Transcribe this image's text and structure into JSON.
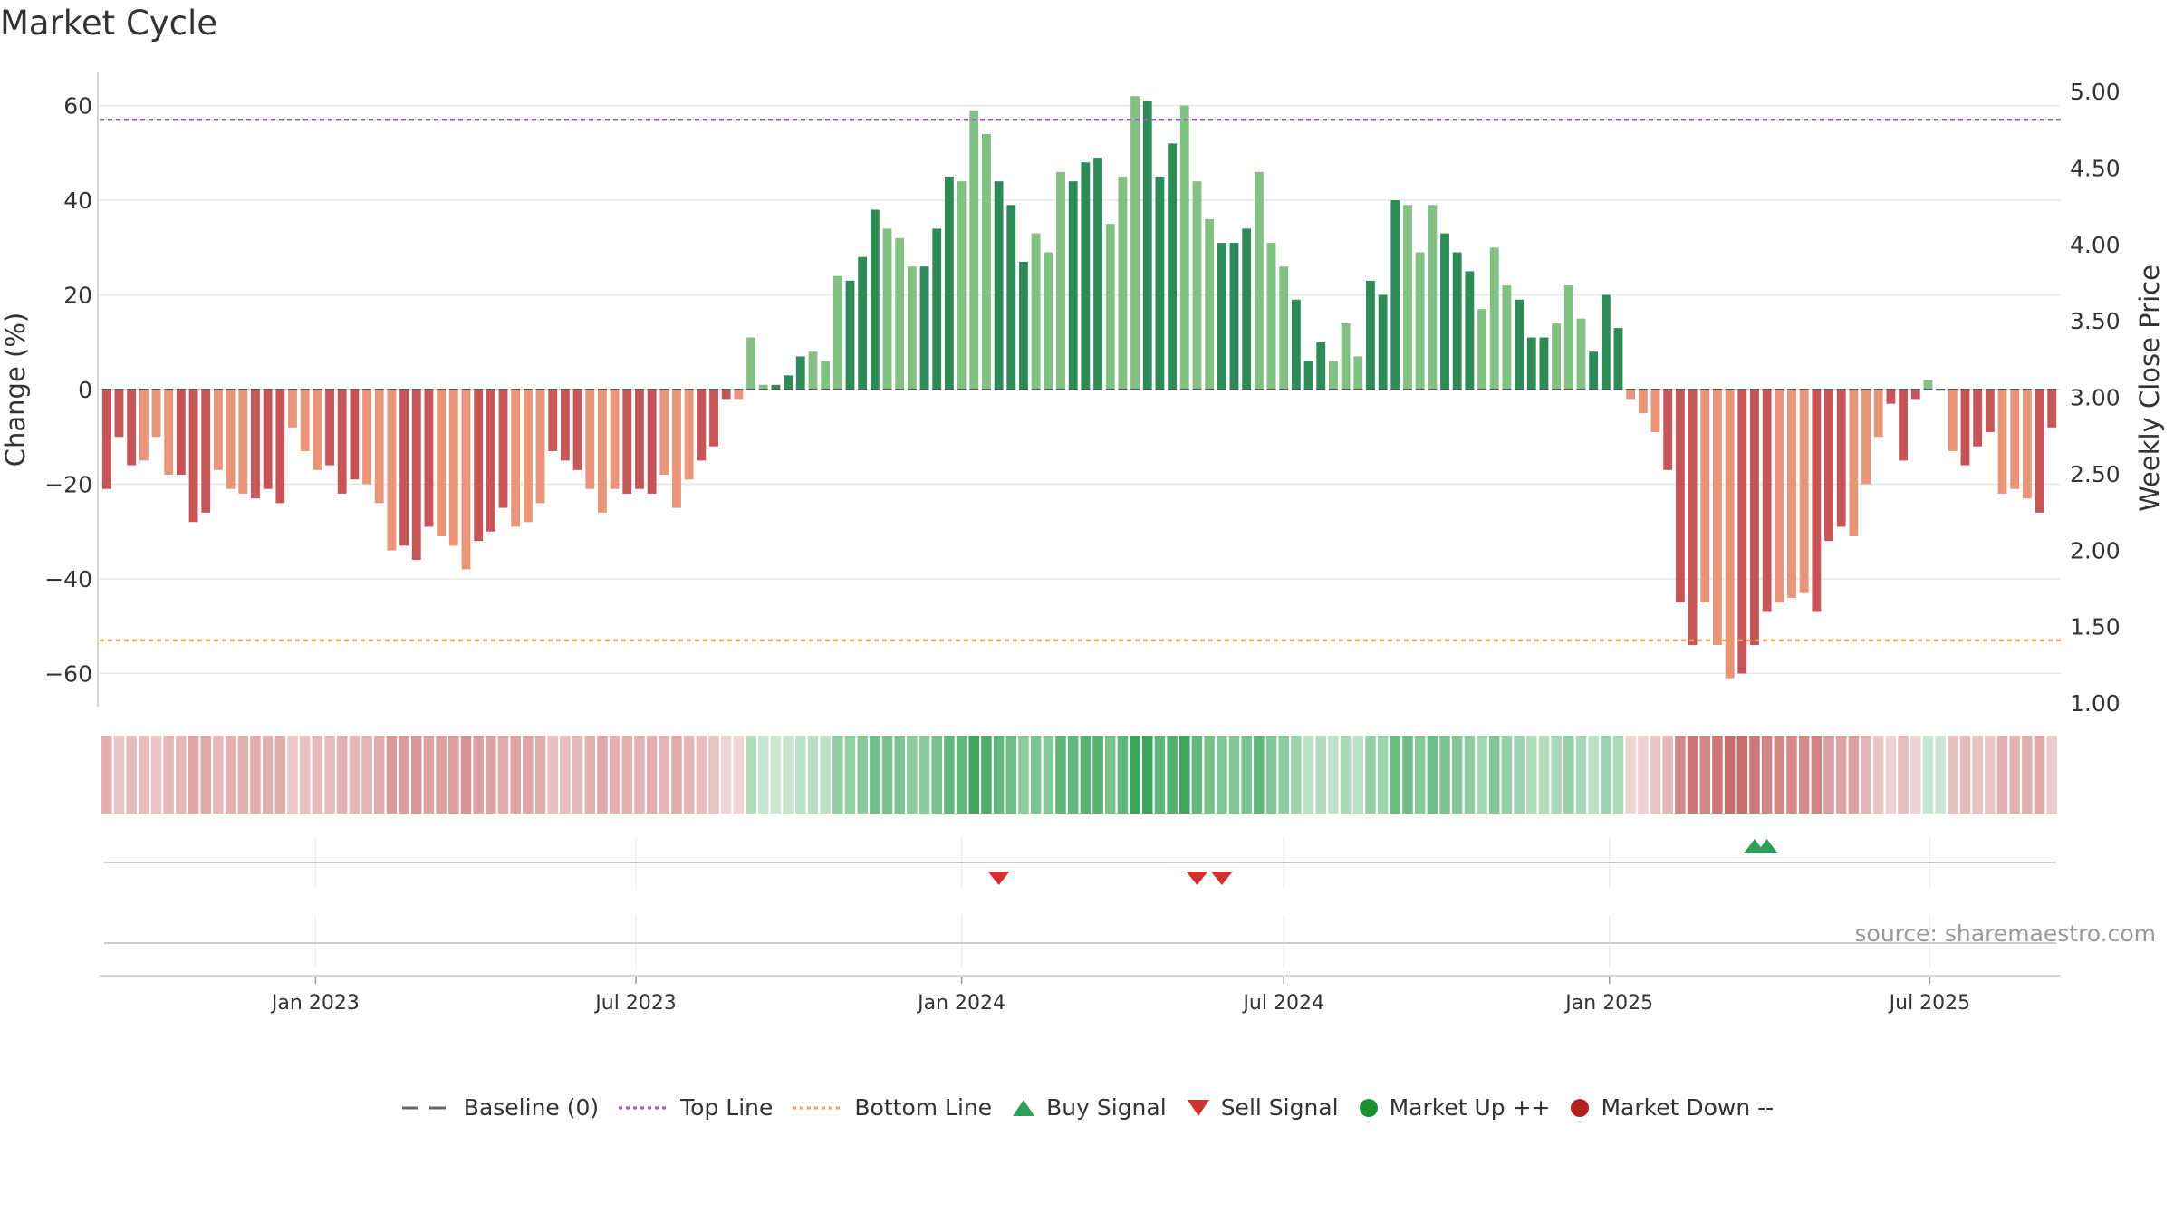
{
  "title": "Market Cycle",
  "source": "source: sharemaestro.com",
  "colors": {
    "down_dark": "#c6555a",
    "down_light": "#e8957a",
    "up_dark": "#2e8b57",
    "up_light": "#82c083",
    "top_line": "#9e5fc6",
    "bottom_line": "#eda35a",
    "buy": "#2e9e5b",
    "sell": "#d22f2f",
    "market_up": "#1e8f2f",
    "market_down": "#b22222"
  },
  "legend": [
    {
      "label": "Baseline (0)",
      "icon": "dash-line-icon"
    },
    {
      "label": "Top Line",
      "icon": "dotted-purple-line-icon"
    },
    {
      "label": "Bottom Line",
      "icon": "dotted-orange-line-icon"
    },
    {
      "label": "Buy Signal",
      "icon": "up-triangle-icon"
    },
    {
      "label": "Sell Signal",
      "icon": "down-triangle-icon"
    },
    {
      "label": "Market Up ++",
      "icon": "green-dot-icon"
    },
    {
      "label": "Market Down --",
      "icon": "red-dot-icon"
    }
  ],
  "chart_data": {
    "type": "bar",
    "ylabel": "Change (%)",
    "y2label": "Weekly Close Price",
    "ylim": [
      -67,
      67
    ],
    "y2lim": [
      1.0,
      5.0
    ],
    "yticks": [
      60,
      40,
      20,
      0,
      -20,
      -40,
      -60
    ],
    "y2ticks": [
      "5.00",
      "4.50",
      "4.00",
      "3.50",
      "3.00",
      "2.50",
      "2.00",
      "1.50",
      "1.00"
    ],
    "top_line": 57,
    "bottom_line": -53,
    "x_start": "2022-09-05",
    "x_range": [
      "2022-09-01",
      "2025-09-13"
    ],
    "xticks": [
      {
        "label": "Jan 2023",
        "date": "2023-01-01"
      },
      {
        "label": "Jul 2023",
        "date": "2023-07-01"
      },
      {
        "label": "Jan 2024",
        "date": "2024-01-01"
      },
      {
        "label": "Jul 2024",
        "date": "2024-07-01"
      },
      {
        "label": "Jan 2025",
        "date": "2025-01-01"
      },
      {
        "label": "Jul 2025",
        "date": "2025-07-01"
      }
    ],
    "values": [
      -21,
      -10,
      -16,
      -15,
      -10,
      -18,
      -18,
      -28,
      -26,
      -17,
      -21,
      -22,
      -23,
      -21,
      -24,
      -8,
      -13,
      -17,
      -16,
      -22,
      -19,
      -20,
      -24,
      -34,
      -33,
      -36,
      -29,
      -31,
      -33,
      -38,
      -32,
      -30,
      -25,
      -29,
      -28,
      -24,
      -13,
      -15,
      -17,
      -21,
      -26,
      -21,
      -22,
      -21,
      -22,
      -18,
      -25,
      -19,
      -15,
      -12,
      -2,
      -2,
      11,
      1,
      1,
      3,
      7,
      8,
      6,
      24,
      23,
      28,
      38,
      34,
      32,
      26,
      26,
      34,
      45,
      44,
      59,
      54,
      44,
      39,
      27,
      33,
      29,
      46,
      44,
      48,
      49,
      35,
      45,
      62,
      61,
      45,
      52,
      60,
      44,
      36,
      31,
      31,
      34,
      46,
      31,
      26,
      19,
      6,
      10,
      6,
      14,
      7,
      23,
      20,
      40,
      39,
      29,
      39,
      33,
      29,
      25,
      17,
      30,
      22,
      19,
      11,
      11,
      14,
      22,
      15,
      8,
      20,
      13,
      -2,
      -5,
      -9,
      -17,
      -45,
      -54,
      -45,
      -54,
      -61,
      -60,
      -54,
      -47,
      -45,
      -44,
      -43,
      -47,
      -32,
      -29,
      -31,
      -20,
      -10,
      -3,
      -15,
      -2,
      2,
      0,
      -13,
      -16,
      -12,
      -9,
      -22,
      -21,
      -23,
      -26,
      -8
    ],
    "buy_signals": [
      "2025-03-24",
      "2025-03-31"
    ],
    "sell_signals": [
      "2024-01-22",
      "2024-05-13",
      "2024-05-27"
    ]
  }
}
